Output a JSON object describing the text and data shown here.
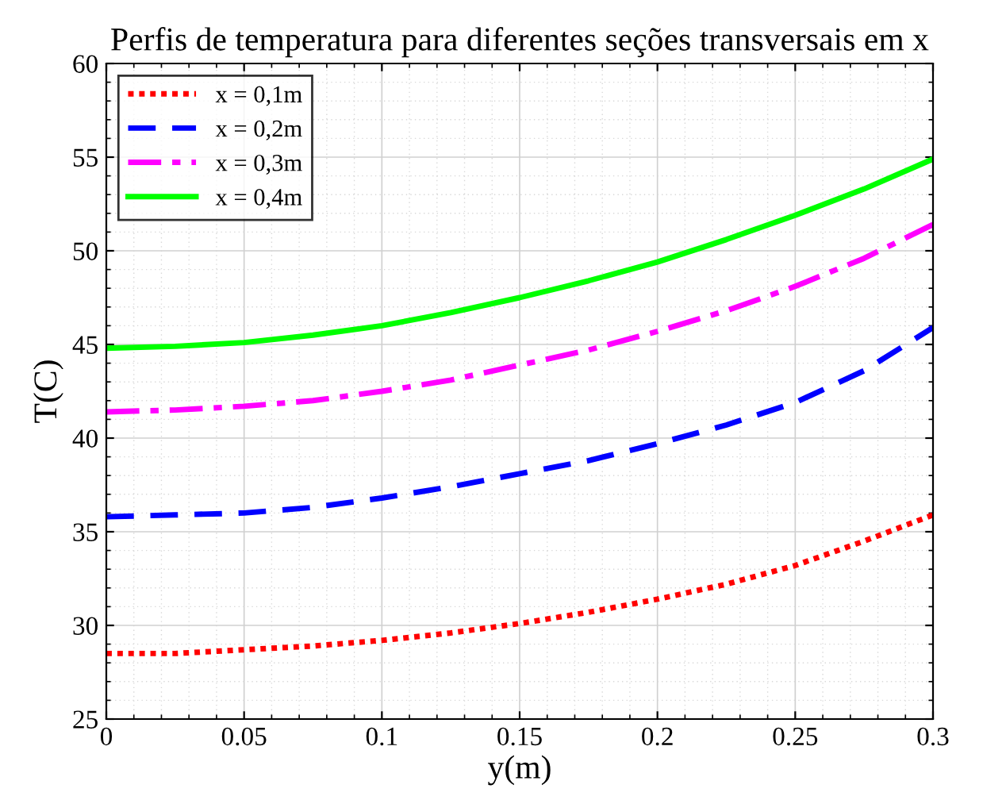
{
  "chart_data": {
    "type": "line",
    "title": "Perfis de temperatura para diferentes seções transversais em x",
    "xlabel": "y(m)",
    "ylabel": "T(C)",
    "x": [
      0,
      0.025,
      0.05,
      0.075,
      0.1,
      0.125,
      0.15,
      0.175,
      0.2,
      0.225,
      0.25,
      0.275,
      0.3
    ],
    "series": [
      {
        "name": "x = 0,1m",
        "color": "#ff0000",
        "line_style": "dotted",
        "values": [
          28.5,
          28.5,
          28.7,
          28.9,
          29.2,
          29.6,
          30.1,
          30.7,
          31.4,
          32.2,
          33.2,
          34.5,
          35.9
        ]
      },
      {
        "name": "x = 0,2m",
        "color": "#0000ff",
        "line_style": "dashed",
        "values": [
          35.8,
          35.9,
          36.0,
          36.3,
          36.8,
          37.4,
          38.1,
          38.8,
          39.7,
          40.7,
          41.9,
          43.6,
          45.9
        ]
      },
      {
        "name": "x = 0,3m",
        "color": "#ff00ff",
        "line_style": "dashdot",
        "values": [
          41.4,
          41.5,
          41.7,
          42.0,
          42.5,
          43.1,
          43.9,
          44.7,
          45.7,
          46.8,
          48.1,
          49.6,
          51.4
        ]
      },
      {
        "name": "x = 0,4m",
        "color": "#00ff00",
        "line_style": "solid",
        "values": [
          44.8,
          44.9,
          45.1,
          45.5,
          46.0,
          46.7,
          47.5,
          48.4,
          49.4,
          50.6,
          51.9,
          53.3,
          54.9
        ]
      }
    ],
    "xlim": [
      0,
      0.3
    ],
    "ylim": [
      25,
      60
    ],
    "xticks": [
      0,
      0.05,
      0.1,
      0.15,
      0.2,
      0.25,
      0.3
    ],
    "yticks": [
      25,
      30,
      35,
      40,
      45,
      50,
      55,
      60
    ],
    "grid": true,
    "legend": "top left",
    "marker": "none"
  }
}
